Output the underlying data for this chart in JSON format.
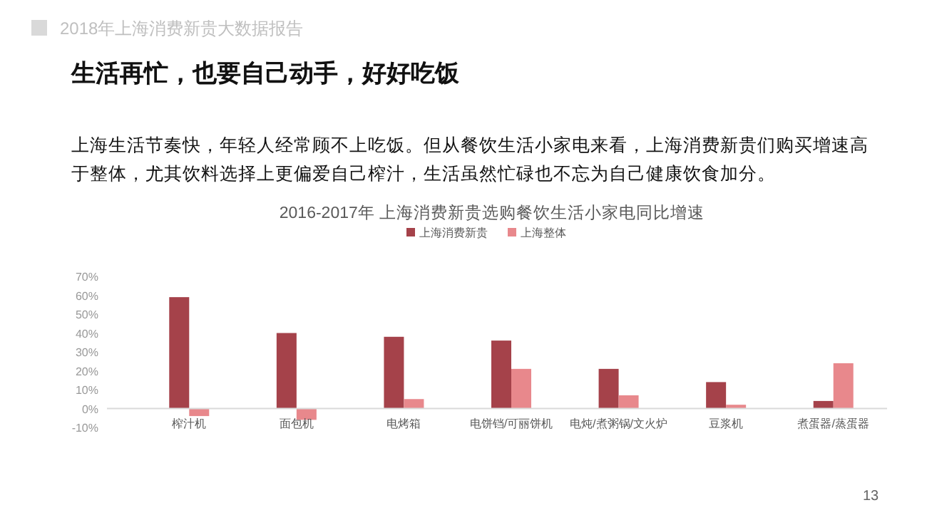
{
  "chart_data": {
    "type": "bar",
    "title": "2016-2017年 上海消费新贵选购餐饮生活小家电同比增速",
    "annotations": [
      "2018年上海消费新贵大数据报告",
      "生活再忙，也要自己动手，好好吃饭",
      "上海生活节奏快，年轻人经常顾不上吃饭。但从餐饮生活小家电来看，上海消费新贵们购买增速高于整体，尤其饮料选择上更偏爱自己榨汁，生活虽然忙碌也不忘为自己健康饮食加分。",
      "13"
    ],
    "categories": [
      "榨汁机",
      "面包机",
      "电烤箱",
      "电饼铛/可丽饼机",
      "电炖/煮粥锅/文火炉",
      "豆浆机",
      "煮蛋器/蒸蛋器"
    ],
    "series": [
      {
        "name": "上海消费新贵",
        "color": "#a5424a",
        "values": [
          59,
          40,
          38,
          36,
          21,
          14,
          4
        ]
      },
      {
        "name": "上海整体",
        "color": "#e8888c",
        "values": [
          -4,
          -6,
          5,
          21,
          7,
          2,
          24
        ]
      }
    ],
    "ylim": [
      -10,
      70
    ],
    "yticks": [
      {
        "value": -10,
        "label": "-10%"
      },
      {
        "value": 0,
        "label": "0%"
      },
      {
        "value": 10,
        "label": "10%"
      },
      {
        "value": 20,
        "label": "20%"
      },
      {
        "value": 30,
        "label": "30%"
      },
      {
        "value": 40,
        "label": "40%"
      },
      {
        "value": 50,
        "label": "50%"
      },
      {
        "value": 60,
        "label": "60%"
      },
      {
        "value": 70,
        "label": "70%"
      }
    ],
    "legend": "top",
    "grid": false
  }
}
